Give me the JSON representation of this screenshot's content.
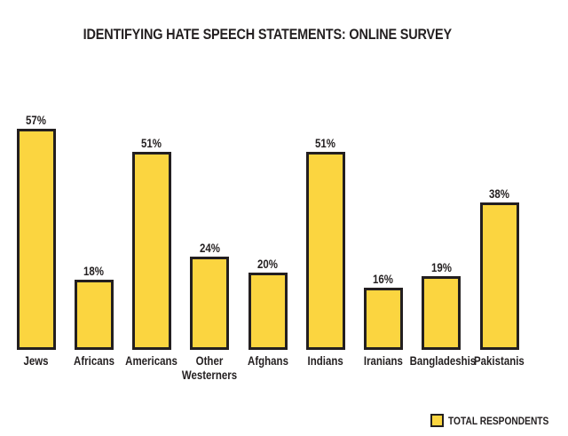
{
  "chart_data": {
    "type": "bar",
    "title": "IDENTIFYING HATE SPEECH STATEMENTS: ONLINE SURVEY",
    "categories": [
      "Jews",
      "Africans",
      "Americans",
      "Other Westerners",
      "Afghans",
      "Indians",
      "Iranians",
      "Bangladeshis",
      "Pakistanis"
    ],
    "values": [
      57,
      18,
      51,
      24,
      20,
      51,
      16,
      19,
      38
    ],
    "unit": "%",
    "xlabel": "",
    "ylabel": "",
    "ylim": [
      0,
      60
    ],
    "grid": false,
    "axes_shown": false,
    "value_labels_shown": true,
    "legend": {
      "position": "bottom-right",
      "entries": [
        {
          "label": "TOTAL RESPONDENTS",
          "swatch_color": "#FBD540"
        }
      ]
    },
    "colors": {
      "bar_fill": "#FBD540",
      "bar_border": "#231F20",
      "text": "#231F20",
      "background": "#FFFFFF"
    }
  }
}
